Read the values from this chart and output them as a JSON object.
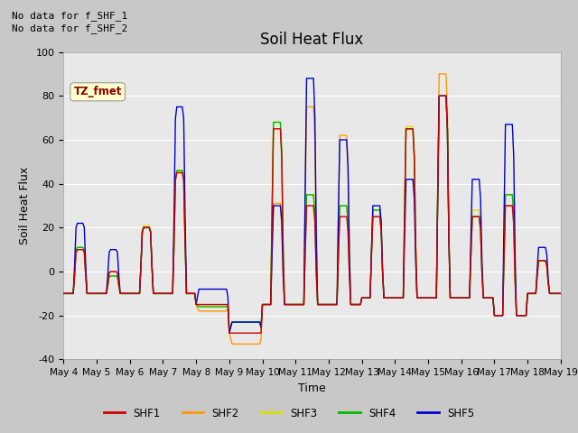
{
  "title": "Soil Heat Flux",
  "xlabel": "Time",
  "ylabel": "Soil Heat Flux",
  "ylim": [
    -40,
    100
  ],
  "note1": "No data for f_SHF_1",
  "note2": "No data for f_SHF_2",
  "tz_label": "TZ_fmet",
  "legend_entries": [
    "SHF1",
    "SHF2",
    "SHF3",
    "SHF4",
    "SHF5"
  ],
  "line_colors": [
    "#cc0000",
    "#ff9900",
    "#dddd00",
    "#00bb00",
    "#0000cc"
  ],
  "yticks": [
    -40,
    -20,
    0,
    20,
    40,
    60,
    80,
    100
  ],
  "x_tick_labels": [
    "May 4",
    "May 5",
    "May 6",
    "May 7",
    "May 8",
    "May 9",
    "May 10",
    "May 11",
    "May 12",
    "May 13",
    "May 14",
    "May 15",
    "May 16",
    "May 17",
    "May 18",
    "May 19"
  ],
  "figsize": [
    6.4,
    4.8
  ],
  "dpi": 100
}
